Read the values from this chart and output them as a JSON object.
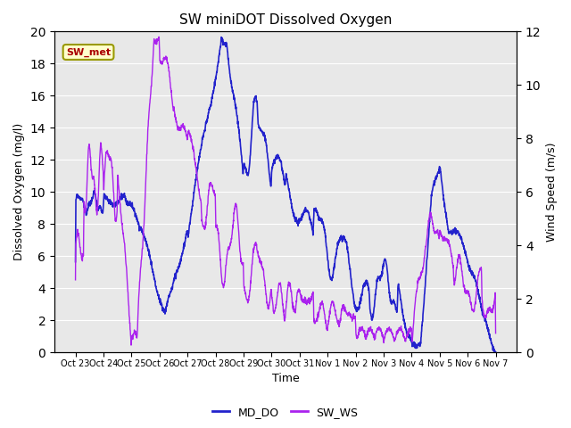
{
  "title": "SW miniDOT Dissolved Oxygen",
  "xlabel": "Time",
  "ylabel_left": "Dissolved Oxygen (mg/l)",
  "ylabel_right": "Wind Speed (m/s)",
  "left_ylim": [
    0,
    20
  ],
  "right_ylim": [
    0,
    12
  ],
  "left_yticks": [
    0,
    2,
    4,
    6,
    8,
    10,
    12,
    14,
    16,
    18,
    20
  ],
  "right_yticks": [
    0,
    2,
    4,
    6,
    8,
    10,
    12
  ],
  "xtick_labels": [
    "Oct 23",
    "Oct 24",
    "Oct 25",
    "Oct 26",
    "Oct 27",
    "Oct 28",
    "Oct 29",
    "Oct 30",
    "Oct 31",
    "Nov 1",
    "Nov 2",
    "Nov 3",
    "Nov 4",
    "Nov 5",
    "Nov 6",
    "Nov 7"
  ],
  "legend_entries": [
    "MD_DO",
    "SW_WS"
  ],
  "line_colors": [
    "#2222cc",
    "#aa22ee"
  ],
  "annotation_text": "SW_met",
  "annotation_color": "#aa0000",
  "annotation_bg": "#ffffcc",
  "annotation_border": "#999900",
  "background_color": "#e8e8e8",
  "grid_color": "#ffffff"
}
